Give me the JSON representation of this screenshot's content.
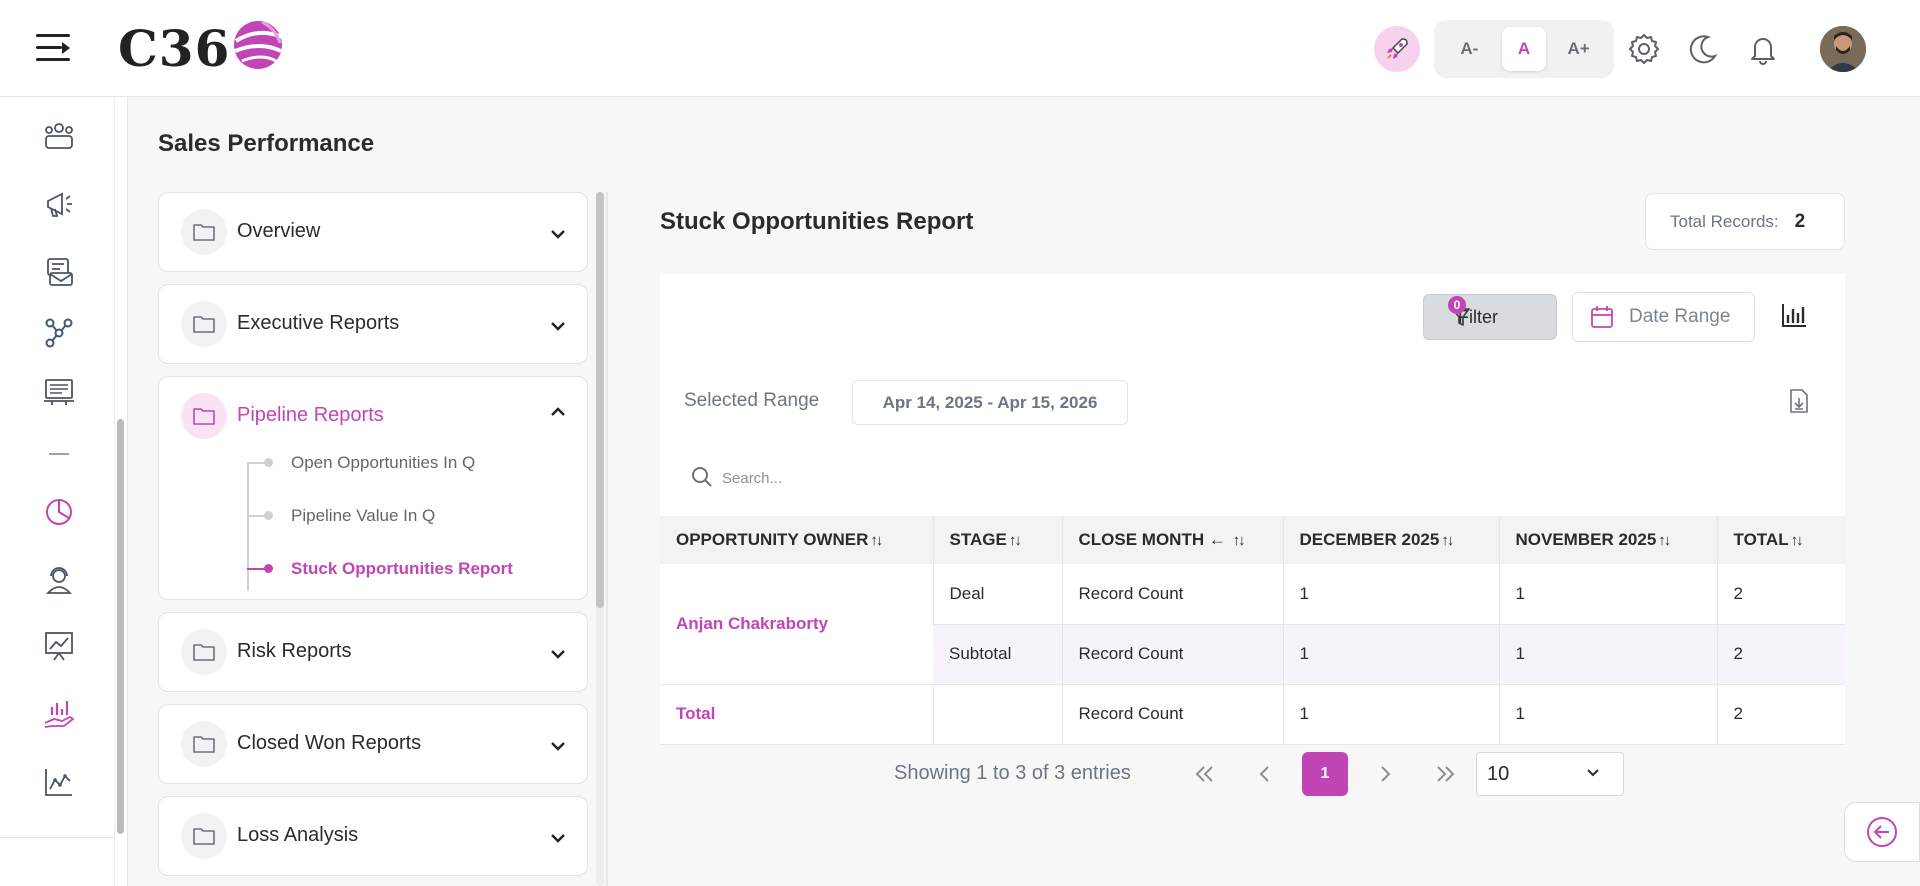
{
  "header": {
    "logo_text": "C36",
    "font_buttons": [
      "A-",
      "A",
      "A+"
    ],
    "active_font": "A"
  },
  "page": {
    "title": "Sales Performance"
  },
  "accordion": {
    "items": [
      {
        "label": "Overview"
      },
      {
        "label": "Executive Reports"
      },
      {
        "label": "Pipeline Reports",
        "subitems": [
          "Open Opportunities In Q",
          "Pipeline Value In Q",
          "Stuck Opportunities Report"
        ]
      },
      {
        "label": "Risk Reports"
      },
      {
        "label": "Closed Won Reports"
      },
      {
        "label": "Loss Analysis"
      }
    ]
  },
  "report": {
    "title": "Stuck Opportunities Report",
    "total_label": "Total Records:",
    "total_value": "2",
    "filter_label": "Filter",
    "filter_count": "0",
    "date_range_label": "Date Range",
    "selected_range_label": "Selected Range",
    "selected_range_value": "Apr 14, 2025 - Apr 15, 2026",
    "search_placeholder": "Search...",
    "columns": [
      "OPPORTUNITY OWNER",
      "STAGE",
      "CLOSE MONTH ←",
      "DECEMBER 2025",
      "NOVEMBER 2025",
      "TOTAL"
    ],
    "rows": {
      "owner": "Anjan Chakraborty",
      "deal": {
        "stage": "Deal",
        "measure": "Record Count",
        "dec": "1",
        "nov": "1",
        "total": "2"
      },
      "subtotal": {
        "stage": "Subtotal",
        "measure": "Record Count",
        "dec": "1",
        "nov": "1",
        "total": "2"
      },
      "grand": {
        "label": "Total",
        "stage": "",
        "measure": "Record Count",
        "dec": "1",
        "nov": "1",
        "total": "2"
      }
    },
    "showing_text": "Showing 1 to 3 of 3 entries",
    "pagination": {
      "first": "«",
      "prev": "‹",
      "current": "1",
      "next": "›",
      "last": "»"
    },
    "per_page": "10"
  },
  "colors": {
    "accent": "#c245b6",
    "text": "#2b2b2b",
    "muted": "#6d7584"
  }
}
